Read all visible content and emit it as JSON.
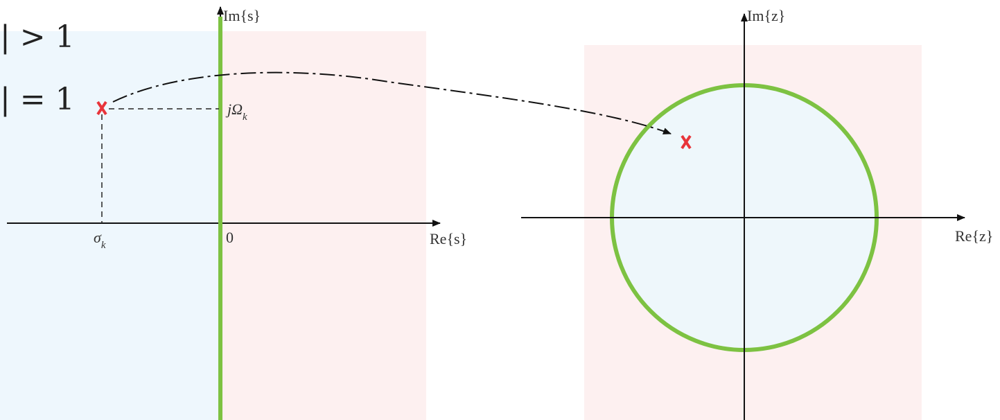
{
  "left_text": [
    "| > 1",
    "| = 1"
  ],
  "s_plane": {
    "y_axis_label": "Im{s}",
    "x_axis_label": "Re{s}",
    "origin_label": "0",
    "pole_real": {
      "main": "σ",
      "sub": "k"
    },
    "pole_imag": {
      "main": "jΩ",
      "sub": "k"
    }
  },
  "z_plane": {
    "y_axis_label": "Im{z}",
    "x_axis_label": "Re{z}"
  }
}
